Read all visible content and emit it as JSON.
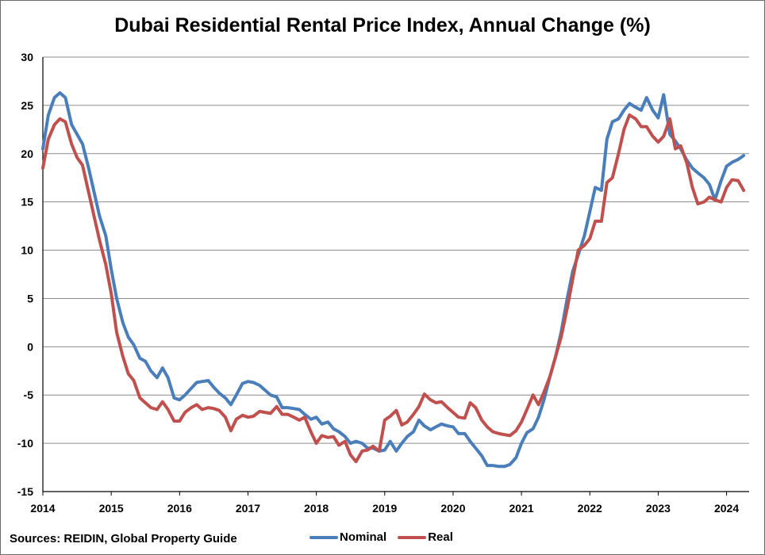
{
  "chart_data": {
    "type": "line",
    "title": "Dubai Residential Rental Price Index, Annual Change (%)",
    "source": "Sources: REIDIN, Global Property Guide",
    "xlabel": "",
    "ylabel": "",
    "xlim": [
      2014.0,
      2024.33
    ],
    "ylim": [
      -15,
      30
    ],
    "yticks": [
      30,
      25,
      20,
      15,
      10,
      5,
      0,
      -5,
      -10,
      -15
    ],
    "xticks": [
      "2014",
      "2015",
      "2016",
      "2017",
      "2018",
      "2019",
      "2020",
      "2021",
      "2022",
      "2023",
      "2024"
    ],
    "grid": "horizontal",
    "legend_position": "bottom",
    "series": [
      {
        "name": "Nominal",
        "color": "#4a7ebb",
        "points": [
          [
            2014.0,
            20.5
          ],
          [
            2014.08,
            24.0
          ],
          [
            2014.17,
            25.8
          ],
          [
            2014.25,
            26.3
          ],
          [
            2014.33,
            25.8
          ],
          [
            2014.42,
            23.0
          ],
          [
            2014.5,
            22.0
          ],
          [
            2014.58,
            21.0
          ],
          [
            2014.67,
            18.5
          ],
          [
            2014.75,
            16.0
          ],
          [
            2014.83,
            13.5
          ],
          [
            2014.92,
            11.5
          ],
          [
            2015.0,
            8.0
          ],
          [
            2015.08,
            5.0
          ],
          [
            2015.17,
            2.5
          ],
          [
            2015.25,
            1.0
          ],
          [
            2015.33,
            0.2
          ],
          [
            2015.42,
            -1.2
          ],
          [
            2015.5,
            -1.5
          ],
          [
            2015.58,
            -2.5
          ],
          [
            2015.67,
            -3.2
          ],
          [
            2015.75,
            -2.2
          ],
          [
            2015.83,
            -3.2
          ],
          [
            2015.92,
            -5.3
          ],
          [
            2016.0,
            -5.5
          ],
          [
            2016.08,
            -5.0
          ],
          [
            2016.17,
            -4.3
          ],
          [
            2016.25,
            -3.7
          ],
          [
            2016.33,
            -3.6
          ],
          [
            2016.42,
            -3.5
          ],
          [
            2016.5,
            -4.2
          ],
          [
            2016.58,
            -4.8
          ],
          [
            2016.67,
            -5.3
          ],
          [
            2016.75,
            -6.0
          ],
          [
            2016.83,
            -5.0
          ],
          [
            2016.92,
            -3.8
          ],
          [
            2017.0,
            -3.6
          ],
          [
            2017.08,
            -3.7
          ],
          [
            2017.17,
            -4.0
          ],
          [
            2017.25,
            -4.5
          ],
          [
            2017.33,
            -5.0
          ],
          [
            2017.42,
            -5.2
          ],
          [
            2017.5,
            -6.3
          ],
          [
            2017.58,
            -6.3
          ],
          [
            2017.67,
            -6.4
          ],
          [
            2017.75,
            -6.5
          ],
          [
            2017.83,
            -7.0
          ],
          [
            2017.92,
            -7.5
          ],
          [
            2018.0,
            -7.3
          ],
          [
            2018.08,
            -8.0
          ],
          [
            2018.17,
            -7.8
          ],
          [
            2018.25,
            -8.5
          ],
          [
            2018.33,
            -8.8
          ],
          [
            2018.42,
            -9.3
          ],
          [
            2018.5,
            -10.0
          ],
          [
            2018.58,
            -9.8
          ],
          [
            2018.67,
            -10.0
          ],
          [
            2018.75,
            -10.5
          ],
          [
            2018.83,
            -10.5
          ],
          [
            2018.92,
            -10.8
          ],
          [
            2019.0,
            -10.7
          ],
          [
            2019.08,
            -9.8
          ],
          [
            2019.17,
            -10.8
          ],
          [
            2019.25,
            -10.0
          ],
          [
            2019.33,
            -9.3
          ],
          [
            2019.42,
            -8.8
          ],
          [
            2019.5,
            -7.6
          ],
          [
            2019.58,
            -8.2
          ],
          [
            2019.67,
            -8.6
          ],
          [
            2019.75,
            -8.3
          ],
          [
            2019.83,
            -8.0
          ],
          [
            2019.92,
            -8.2
          ],
          [
            2020.0,
            -8.3
          ],
          [
            2020.08,
            -9.0
          ],
          [
            2020.17,
            -9.0
          ],
          [
            2020.25,
            -9.8
          ],
          [
            2020.33,
            -10.5
          ],
          [
            2020.42,
            -11.3
          ],
          [
            2020.5,
            -12.3
          ],
          [
            2020.58,
            -12.3
          ],
          [
            2020.67,
            -12.4
          ],
          [
            2020.75,
            -12.4
          ],
          [
            2020.83,
            -12.2
          ],
          [
            2020.92,
            -11.5
          ],
          [
            2021.0,
            -10.0
          ],
          [
            2021.08,
            -8.9
          ],
          [
            2021.17,
            -8.5
          ],
          [
            2021.25,
            -7.3
          ],
          [
            2021.33,
            -5.5
          ],
          [
            2021.42,
            -3.0
          ],
          [
            2021.5,
            -1.0
          ],
          [
            2021.58,
            1.5
          ],
          [
            2021.67,
            5.0
          ],
          [
            2021.75,
            7.8
          ],
          [
            2021.83,
            9.5
          ],
          [
            2021.92,
            11.5
          ],
          [
            2022.0,
            14.0
          ],
          [
            2022.08,
            16.5
          ],
          [
            2022.17,
            16.2
          ],
          [
            2022.25,
            21.5
          ],
          [
            2022.33,
            23.3
          ],
          [
            2022.42,
            23.6
          ],
          [
            2022.5,
            24.5
          ],
          [
            2022.58,
            25.2
          ],
          [
            2022.67,
            24.8
          ],
          [
            2022.75,
            24.5
          ],
          [
            2022.83,
            25.8
          ],
          [
            2022.92,
            24.5
          ],
          [
            2023.0,
            23.7
          ],
          [
            2023.08,
            26.1
          ],
          [
            2023.17,
            22.0
          ],
          [
            2023.25,
            21.3
          ],
          [
            2023.33,
            20.5
          ],
          [
            2023.42,
            19.3
          ],
          [
            2023.5,
            18.5
          ],
          [
            2023.58,
            18.0
          ],
          [
            2023.67,
            17.5
          ],
          [
            2023.75,
            16.8
          ],
          [
            2023.83,
            15.2
          ],
          [
            2023.92,
            17.2
          ],
          [
            2024.0,
            18.7
          ],
          [
            2024.08,
            19.1
          ],
          [
            2024.17,
            19.4
          ],
          [
            2024.25,
            19.8
          ]
        ]
      },
      {
        "name": "Real",
        "color": "#c0504d",
        "points": [
          [
            2014.0,
            18.5
          ],
          [
            2014.08,
            21.5
          ],
          [
            2014.17,
            23.0
          ],
          [
            2014.25,
            23.6
          ],
          [
            2014.33,
            23.3
          ],
          [
            2014.42,
            21.0
          ],
          [
            2014.5,
            19.6
          ],
          [
            2014.58,
            18.8
          ],
          [
            2014.67,
            16.0
          ],
          [
            2014.75,
            13.5
          ],
          [
            2014.83,
            11.0
          ],
          [
            2014.92,
            8.5
          ],
          [
            2015.0,
            5.5
          ],
          [
            2015.08,
            1.5
          ],
          [
            2015.17,
            -1.0
          ],
          [
            2015.25,
            -2.8
          ],
          [
            2015.33,
            -3.5
          ],
          [
            2015.42,
            -5.3
          ],
          [
            2015.5,
            -5.8
          ],
          [
            2015.58,
            -6.3
          ],
          [
            2015.67,
            -6.5
          ],
          [
            2015.75,
            -5.7
          ],
          [
            2015.83,
            -6.5
          ],
          [
            2015.92,
            -7.7
          ],
          [
            2016.0,
            -7.7
          ],
          [
            2016.08,
            -6.8
          ],
          [
            2016.17,
            -6.3
          ],
          [
            2016.25,
            -6.0
          ],
          [
            2016.33,
            -6.5
          ],
          [
            2016.42,
            -6.3
          ],
          [
            2016.5,
            -6.4
          ],
          [
            2016.58,
            -6.6
          ],
          [
            2016.67,
            -7.3
          ],
          [
            2016.75,
            -8.7
          ],
          [
            2016.83,
            -7.5
          ],
          [
            2016.92,
            -7.1
          ],
          [
            2017.0,
            -7.3
          ],
          [
            2017.08,
            -7.2
          ],
          [
            2017.17,
            -6.7
          ],
          [
            2017.25,
            -6.8
          ],
          [
            2017.33,
            -6.9
          ],
          [
            2017.42,
            -6.2
          ],
          [
            2017.5,
            -7.0
          ],
          [
            2017.58,
            -7.0
          ],
          [
            2017.67,
            -7.3
          ],
          [
            2017.75,
            -7.6
          ],
          [
            2017.83,
            -7.3
          ],
          [
            2017.92,
            -8.8
          ],
          [
            2018.0,
            -10.0
          ],
          [
            2018.08,
            -9.2
          ],
          [
            2018.17,
            -9.4
          ],
          [
            2018.25,
            -9.3
          ],
          [
            2018.33,
            -10.2
          ],
          [
            2018.42,
            -9.8
          ],
          [
            2018.5,
            -11.2
          ],
          [
            2018.58,
            -11.9
          ],
          [
            2018.67,
            -10.8
          ],
          [
            2018.75,
            -10.7
          ],
          [
            2018.83,
            -10.3
          ],
          [
            2018.92,
            -10.8
          ],
          [
            2019.0,
            -7.6
          ],
          [
            2019.08,
            -7.2
          ],
          [
            2019.17,
            -6.6
          ],
          [
            2019.25,
            -8.1
          ],
          [
            2019.33,
            -7.8
          ],
          [
            2019.42,
            -7.0
          ],
          [
            2019.5,
            -6.2
          ],
          [
            2019.58,
            -4.9
          ],
          [
            2019.67,
            -5.5
          ],
          [
            2019.75,
            -5.8
          ],
          [
            2019.83,
            -5.7
          ],
          [
            2019.92,
            -6.3
          ],
          [
            2020.0,
            -6.8
          ],
          [
            2020.08,
            -7.3
          ],
          [
            2020.17,
            -7.4
          ],
          [
            2020.25,
            -5.8
          ],
          [
            2020.33,
            -6.3
          ],
          [
            2020.42,
            -7.6
          ],
          [
            2020.5,
            -8.3
          ],
          [
            2020.58,
            -8.8
          ],
          [
            2020.67,
            -9.0
          ],
          [
            2020.75,
            -9.1
          ],
          [
            2020.83,
            -9.2
          ],
          [
            2020.92,
            -8.7
          ],
          [
            2021.0,
            -7.8
          ],
          [
            2021.08,
            -6.5
          ],
          [
            2021.17,
            -5.0
          ],
          [
            2021.25,
            -6.0
          ],
          [
            2021.33,
            -4.7
          ],
          [
            2021.42,
            -3.0
          ],
          [
            2021.5,
            -1.0
          ],
          [
            2021.58,
            1.0
          ],
          [
            2021.67,
            4.0
          ],
          [
            2021.75,
            7.0
          ],
          [
            2021.83,
            10.0
          ],
          [
            2021.92,
            10.5
          ],
          [
            2022.0,
            11.2
          ],
          [
            2022.08,
            13.0
          ],
          [
            2022.17,
            13.0
          ],
          [
            2022.25,
            17.0
          ],
          [
            2022.33,
            17.5
          ],
          [
            2022.42,
            20.0
          ],
          [
            2022.5,
            22.5
          ],
          [
            2022.58,
            24.0
          ],
          [
            2022.67,
            23.6
          ],
          [
            2022.75,
            22.8
          ],
          [
            2022.83,
            22.8
          ],
          [
            2022.92,
            21.8
          ],
          [
            2023.0,
            21.2
          ],
          [
            2023.08,
            21.8
          ],
          [
            2023.17,
            23.6
          ],
          [
            2023.25,
            20.5
          ],
          [
            2023.33,
            20.8
          ],
          [
            2023.42,
            19.0
          ],
          [
            2023.5,
            16.5
          ],
          [
            2023.58,
            14.8
          ],
          [
            2023.67,
            15.0
          ],
          [
            2023.75,
            15.5
          ],
          [
            2023.83,
            15.2
          ],
          [
            2023.92,
            15.0
          ],
          [
            2024.0,
            16.5
          ],
          [
            2024.08,
            17.3
          ],
          [
            2024.17,
            17.2
          ],
          [
            2024.25,
            16.2
          ]
        ]
      }
    ]
  }
}
